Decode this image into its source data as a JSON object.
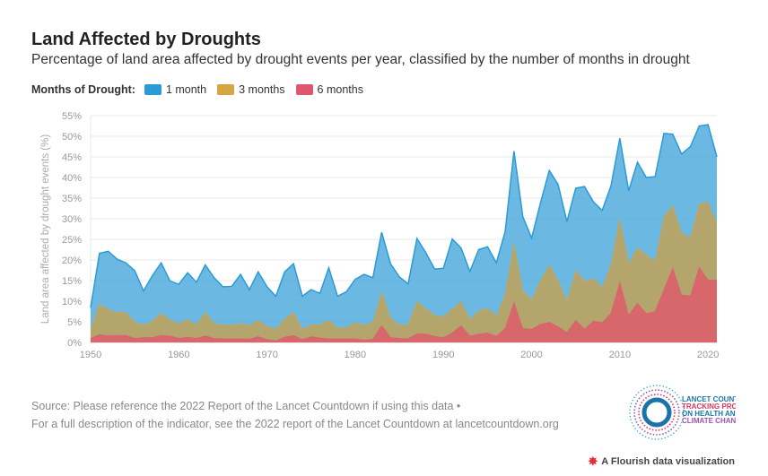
{
  "title": "Land Affected by Droughts",
  "subtitle": "Percentage of land area affected by drought events per year, classified by the number of months in drought",
  "legend": {
    "title": "Months of Drought:",
    "items": [
      {
        "label": "1 month",
        "color": "#2b9bd8"
      },
      {
        "label": "3 months",
        "color": "#d4a540"
      },
      {
        "label": "6 months",
        "color": "#e0566f"
      }
    ]
  },
  "source": {
    "line1": "Source: Please reference the 2022 Report of the Lancet Countdown if using this data •",
    "line2": "For a full description of the indicator, see the 2022 report of the Lancet Countdown at lancetcountdown.org"
  },
  "logo": {
    "lines": [
      "LANCET COUNTDOWN:",
      "TRACKING PROGRESS",
      "ON HEALTH AND",
      "CLIMATE CHANGE"
    ]
  },
  "flourish": {
    "label": "A Flourish data visualization",
    "icon": "flourish-star-icon"
  },
  "chart_data": {
    "type": "area",
    "ylabel": "Land area affected by drought events (%)",
    "xlabel": "",
    "xlim": [
      1950,
      2021
    ],
    "ylim": [
      0,
      55
    ],
    "yticks": [
      "0%",
      "5%",
      "10%",
      "15%",
      "20%",
      "25%",
      "30%",
      "35%",
      "40%",
      "45%",
      "50%",
      "55%"
    ],
    "xticks": [
      "1950",
      "1960",
      "1970",
      "1980",
      "1990",
      "2000",
      "2010",
      "2020"
    ],
    "grid": true,
    "legend": "top-left",
    "x_start": 1950,
    "series": [
      {
        "name": "1 month",
        "color": "#2b9bd8",
        "values": [
          8.4,
          21.6,
          22.1,
          20.2,
          19.3,
          17.4,
          12.5,
          16.2,
          19.3,
          14.9,
          14.1,
          16.9,
          14.6,
          18.8,
          15.7,
          13.5,
          13.6,
          16.5,
          12.8,
          17.1,
          13.5,
          11.2,
          17.1,
          19.1,
          11.2,
          12.8,
          11.9,
          18.1,
          11.2,
          12.3,
          15.3,
          16.5,
          15.7,
          26.7,
          19.1,
          15.9,
          14.2,
          25.2,
          21.8,
          17.8,
          18.0,
          25.1,
          22.9,
          17.2,
          22.5,
          23.2,
          19.3,
          26.9,
          46.4,
          30.5,
          25.3,
          33.8,
          41.7,
          38.3,
          29.3,
          37.4,
          37.8,
          34.1,
          32.0,
          38.0,
          49.5,
          36.8,
          43.7,
          40.0,
          40.2,
          50.7,
          50.5,
          45.7,
          47.5,
          52.5,
          52.8,
          45.0
        ]
      },
      {
        "name": "3 months",
        "color": "#d4a540",
        "values": [
          3.0,
          9.3,
          8.0,
          7.3,
          7.3,
          4.9,
          4.2,
          5.1,
          7.1,
          5.4,
          4.6,
          5.6,
          4.3,
          7.3,
          4.6,
          4.3,
          4.2,
          4.6,
          4.1,
          5.4,
          3.9,
          3.3,
          5.7,
          7.3,
          3.2,
          4.3,
          4.3,
          5.4,
          3.5,
          3.6,
          4.8,
          4.2,
          4.9,
          12.2,
          5.9,
          4.2,
          4.3,
          9.9,
          8.2,
          6.6,
          6.2,
          8.1,
          9.9,
          5.6,
          7.6,
          8.3,
          6.4,
          11.6,
          24.2,
          12.5,
          10.3,
          15.0,
          18.8,
          15.0,
          10.0,
          17.4,
          14.8,
          15.5,
          13.3,
          18.9,
          30.1,
          19.1,
          22.9,
          21.3,
          19.6,
          30.5,
          33.2,
          26.5,
          25.4,
          33.6,
          34.0,
          28.7
        ]
      },
      {
        "name": "6 months",
        "color": "#e0566f",
        "values": [
          1.0,
          1.9,
          1.6,
          1.7,
          1.7,
          1.0,
          1.2,
          1.2,
          1.7,
          1.6,
          1.0,
          1.3,
          1.0,
          1.6,
          1.0,
          0.9,
          0.9,
          0.9,
          0.8,
          1.4,
          0.7,
          0.4,
          1.3,
          1.7,
          0.7,
          1.4,
          1.1,
          0.9,
          0.9,
          0.9,
          0.9,
          0.6,
          0.8,
          4.1,
          1.2,
          1.0,
          0.9,
          2.1,
          2.0,
          1.5,
          1.2,
          2.3,
          4.1,
          1.6,
          2.0,
          2.3,
          1.5,
          3.4,
          9.7,
          3.4,
          3.2,
          4.4,
          4.9,
          3.8,
          2.4,
          5.4,
          3.2,
          5.2,
          4.8,
          7.1,
          14.6,
          6.6,
          9.5,
          7.0,
          7.5,
          12.8,
          18.0,
          11.5,
          11.3,
          18.2,
          15.1,
          15.1
        ]
      }
    ]
  }
}
